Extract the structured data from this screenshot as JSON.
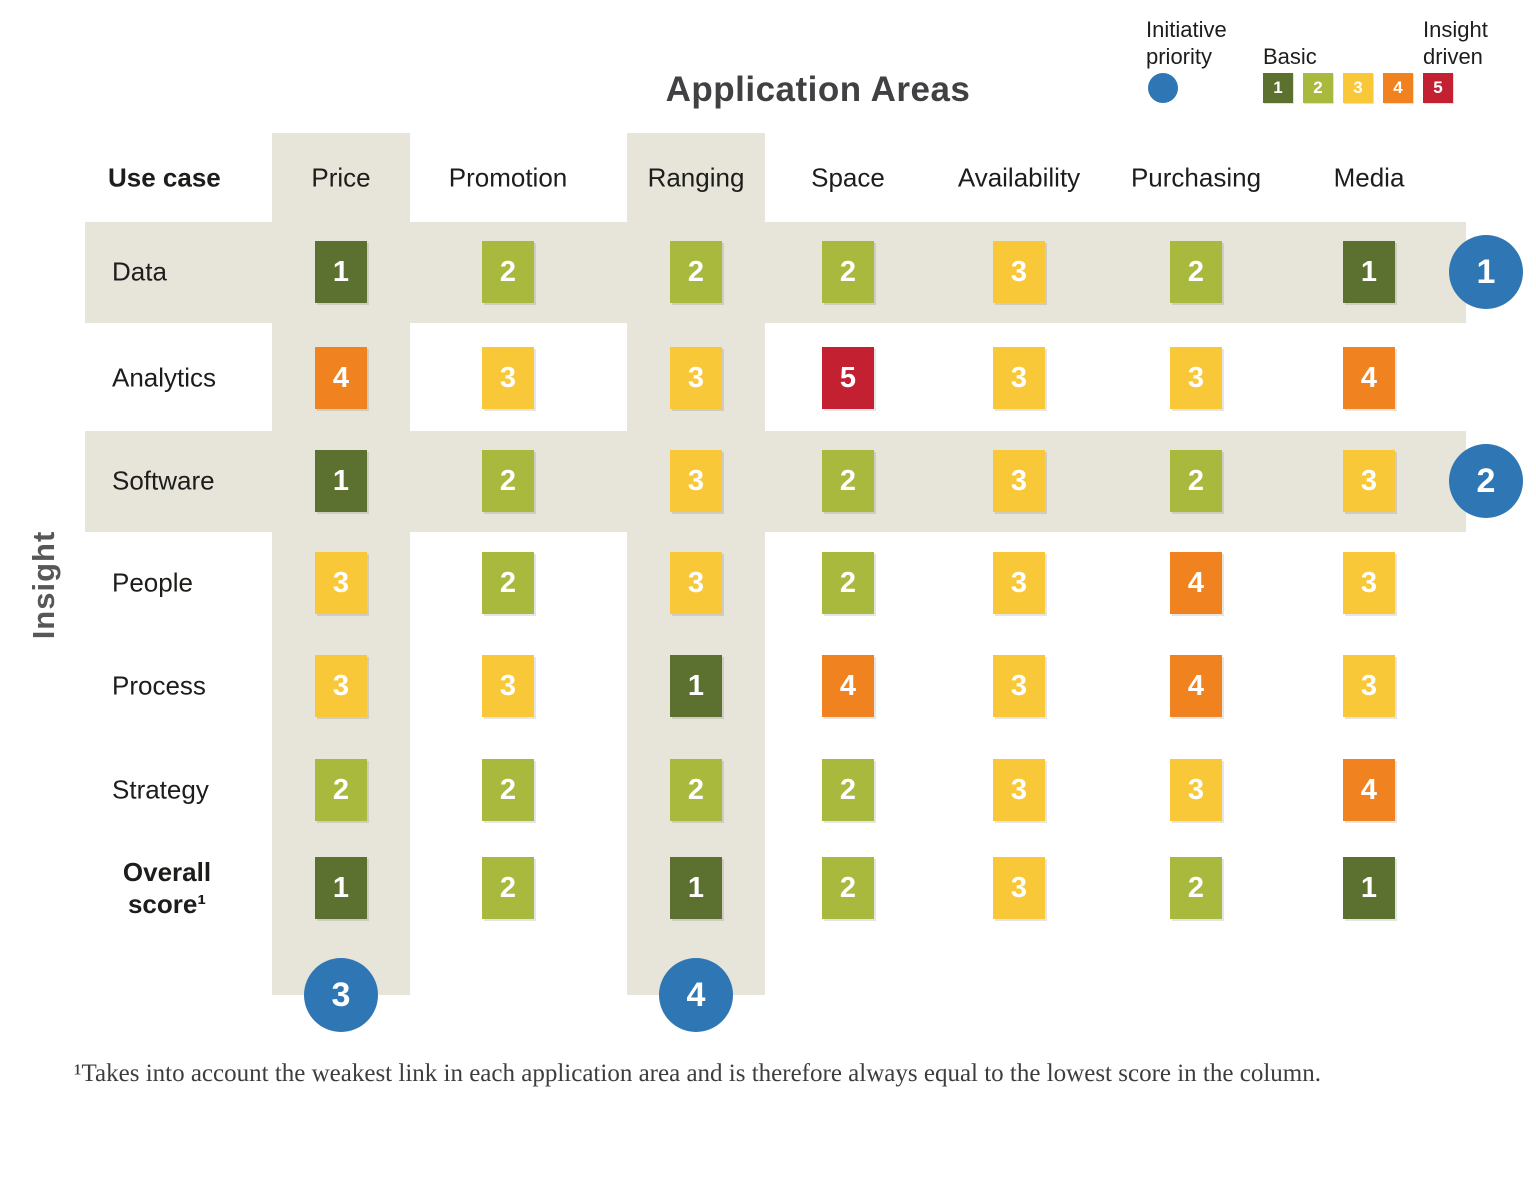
{
  "title": "Application Areas",
  "corner_label": "Use case",
  "y_axis_label": "Insight",
  "legend": {
    "priority_label": "Initiative priority",
    "basic_label": "Basic",
    "insight_driven_label": "Insight driven",
    "priority_color": "#2e76b4",
    "scale": [
      {
        "value": "1",
        "color": "#5c7030"
      },
      {
        "value": "2",
        "color": "#a9b93e"
      },
      {
        "value": "3",
        "color": "#f9c838"
      },
      {
        "value": "4",
        "color": "#f0831f"
      },
      {
        "value": "5",
        "color": "#c32032"
      }
    ]
  },
  "chart_data": {
    "type": "heatmap",
    "title": "Application Areas",
    "x_axis_title": "Application Areas",
    "y_axis_title": "Insight",
    "corner_label": "Use case",
    "columns": [
      "Price",
      "Promotion",
      "Ranging",
      "Space",
      "Availability",
      "Purchasing",
      "Media"
    ],
    "rows": [
      "Data",
      "Analytics",
      "Software",
      "People",
      "Process",
      "Strategy",
      "Overall score¹"
    ],
    "values": [
      [
        1,
        2,
        2,
        2,
        3,
        2,
        1
      ],
      [
        4,
        3,
        3,
        5,
        3,
        3,
        4
      ],
      [
        1,
        2,
        3,
        2,
        3,
        2,
        3
      ],
      [
        3,
        2,
        3,
        2,
        3,
        4,
        3
      ],
      [
        3,
        3,
        1,
        4,
        3,
        4,
        3
      ],
      [
        2,
        2,
        2,
        2,
        3,
        3,
        4
      ],
      [
        1,
        2,
        1,
        2,
        3,
        2,
        1
      ]
    ],
    "value_colors": {
      "1": "#5c7030",
      "2": "#a9b93e",
      "3": "#f9c838",
      "4": "#f0831f",
      "5": "#c32032"
    },
    "scale_min_label": "Basic",
    "scale_max_label": "Insight driven",
    "highlight_color": "#e7e4da",
    "priority_color": "#2e76b4",
    "highlighted_rows": [
      "Data",
      "Software"
    ],
    "highlighted_columns": [
      "Price",
      "Ranging"
    ],
    "callouts": [
      {
        "number": "1",
        "type": "row",
        "target": "Data"
      },
      {
        "number": "2",
        "type": "row",
        "target": "Software"
      },
      {
        "number": "3",
        "type": "column",
        "target": "Price"
      },
      {
        "number": "4",
        "type": "column",
        "target": "Ranging"
      }
    ]
  },
  "footnote": "¹Takes into account the weakest link in each application area and is therefore always equal to the lowest score in the column."
}
